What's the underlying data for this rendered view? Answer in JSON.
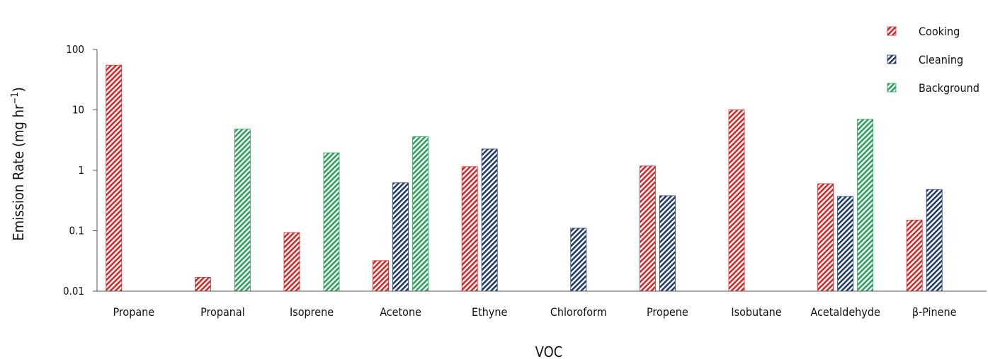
{
  "chart_data": {
    "type": "bar",
    "title": "",
    "xlabel": "VOC",
    "ylabel_main": "Emission Rate (mg hr",
    "ylabel_sup": "−1",
    "ylabel_close": ")",
    "yscale": "log",
    "ylim": [
      0.01,
      100
    ],
    "yticks": [
      {
        "value": 0.01,
        "label": "0.01"
      },
      {
        "value": 0.1,
        "label": "0.1"
      },
      {
        "value": 1,
        "label": "1"
      },
      {
        "value": 10,
        "label": "10"
      },
      {
        "value": 100,
        "label": "100"
      }
    ],
    "grid": false,
    "legend_position": "top-right",
    "categories": [
      "Propane",
      "Propanal",
      "Isoprene",
      "Acetone",
      "Ethyne",
      "Chloroform",
      "Propene",
      "Isobutane",
      "Acetaldehyde",
      "β-Pinene"
    ],
    "series": [
      {
        "name": "Cooking",
        "color": "#d62728",
        "pattern": "diagonal-hatch",
        "values": [
          55,
          0.017,
          0.093,
          0.032,
          1.15,
          null,
          1.18,
          10,
          0.6,
          0.15
        ]
      },
      {
        "name": "Cleaning",
        "color": "#1f3a6e",
        "pattern": "diagonal-hatch",
        "values": [
          null,
          null,
          null,
          0.62,
          2.25,
          0.11,
          0.38,
          null,
          0.37,
          0.48
        ]
      },
      {
        "name": "Background",
        "color": "#2ca05a",
        "pattern": "diagonal-hatch",
        "values": [
          null,
          4.8,
          1.95,
          3.6,
          null,
          null,
          null,
          null,
          7.0,
          null
        ]
      }
    ]
  }
}
